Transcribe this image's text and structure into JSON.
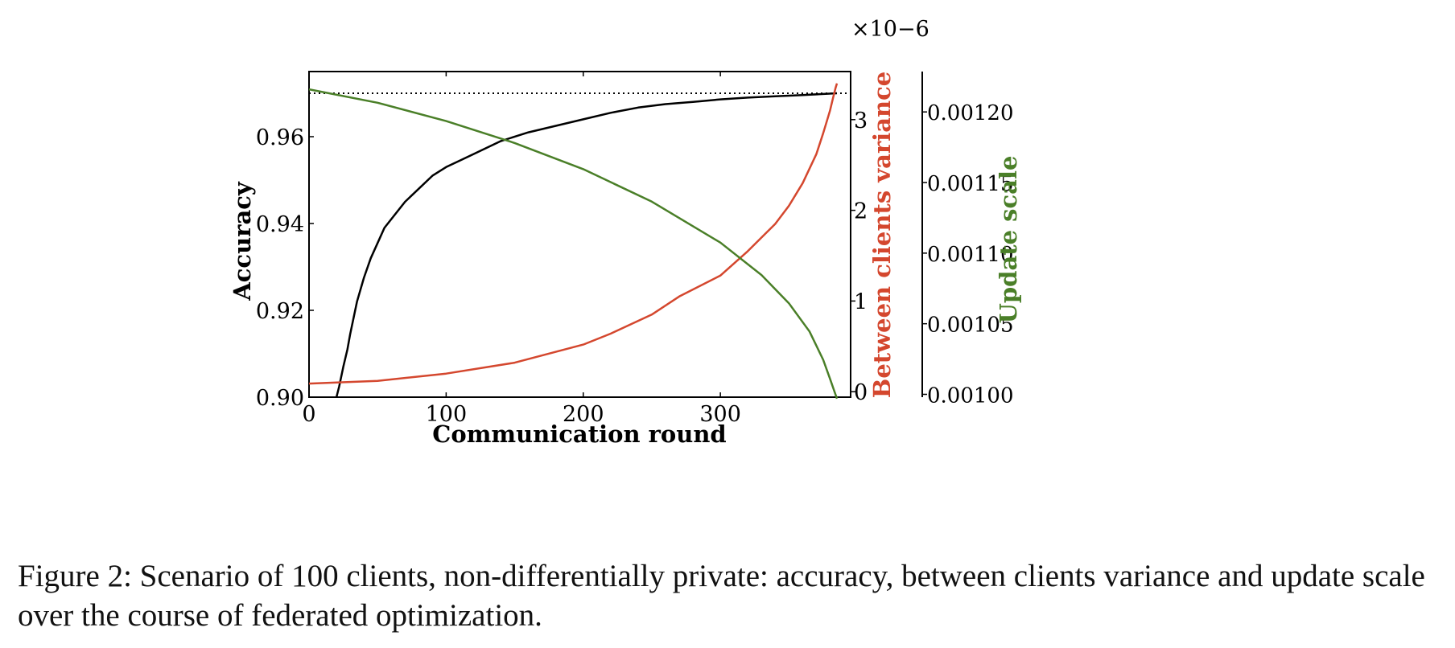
{
  "caption": "Figure 2: Scenario of 100 clients, non-differentially private: accuracy, between clients variance and update scale over the course of federated optimization.",
  "chart_data": {
    "type": "line",
    "xlabel": "Communication round",
    "ylabel": "Accuracy",
    "ylabel_right": "Between clients variance",
    "ylabel_right2": "Update scale",
    "right_axis_multiplier": "×10−6",
    "xlim": [
      0,
      395
    ],
    "ylim": [
      0.9,
      0.975
    ],
    "ylim_right": [
      -0.06,
      3.53
    ],
    "ylim_right2": [
      0.000998,
      0.0012286
    ],
    "x_ticks": [
      "0",
      "100",
      "200",
      "300"
    ],
    "y_ticks": [
      "0.90",
      "0.92",
      "0.94",
      "0.96"
    ],
    "y_ticks_right": [
      "0",
      "1",
      "2",
      "3"
    ],
    "y_ticks_right2": [
      "0.00100",
      "0.00105",
      "0.00110",
      "0.00115",
      "0.00120"
    ],
    "grid": false,
    "colors": {
      "accuracy": "#000000",
      "variance": "#d4472e",
      "update_scale": "#4a7f28",
      "reference": "#000000"
    },
    "reference_line": {
      "axis": "accuracy",
      "y": 0.97,
      "style": "dotted"
    },
    "series": [
      {
        "axis": "accuracy",
        "x": [
          20,
          22,
          25,
          28,
          30,
          35,
          40,
          45,
          50,
          55,
          60,
          70,
          80,
          90,
          100,
          110,
          120,
          140,
          160,
          180,
          200,
          220,
          240,
          260,
          280,
          300,
          320,
          340,
          360,
          385
        ],
        "values": [
          0.9,
          0.9025,
          0.907,
          0.911,
          0.9145,
          0.922,
          0.9275,
          0.932,
          0.9355,
          0.939,
          0.941,
          0.945,
          0.948,
          0.951,
          0.953,
          0.9545,
          0.956,
          0.959,
          0.961,
          0.9625,
          0.964,
          0.9655,
          0.9667,
          0.9675,
          0.968,
          0.9686,
          0.969,
          0.9693,
          0.9696,
          0.97
        ]
      },
      {
        "axis": "variance",
        "x": [
          0,
          50,
          100,
          150,
          200,
          220,
          250,
          270,
          300,
          320,
          340,
          350,
          360,
          370,
          375,
          378,
          380,
          382,
          384,
          385
        ],
        "values": [
          0.09,
          0.12,
          0.2,
          0.32,
          0.52,
          0.64,
          0.85,
          1.05,
          1.28,
          1.55,
          1.85,
          2.05,
          2.3,
          2.62,
          2.85,
          3.0,
          3.1,
          3.23,
          3.35,
          3.4
        ]
      },
      {
        "axis": "update_scale",
        "x": [
          0,
          50,
          100,
          150,
          200,
          250,
          300,
          330,
          350,
          365,
          375,
          380,
          383,
          385
        ],
        "values": [
          0.001216,
          0.0012065,
          0.0011935,
          0.001178,
          0.0011595,
          0.0011365,
          0.0011075,
          0.0010845,
          0.0010645,
          0.0010445,
          0.0010245,
          0.001011,
          0.0010025,
          0.000997
        ]
      }
    ]
  }
}
